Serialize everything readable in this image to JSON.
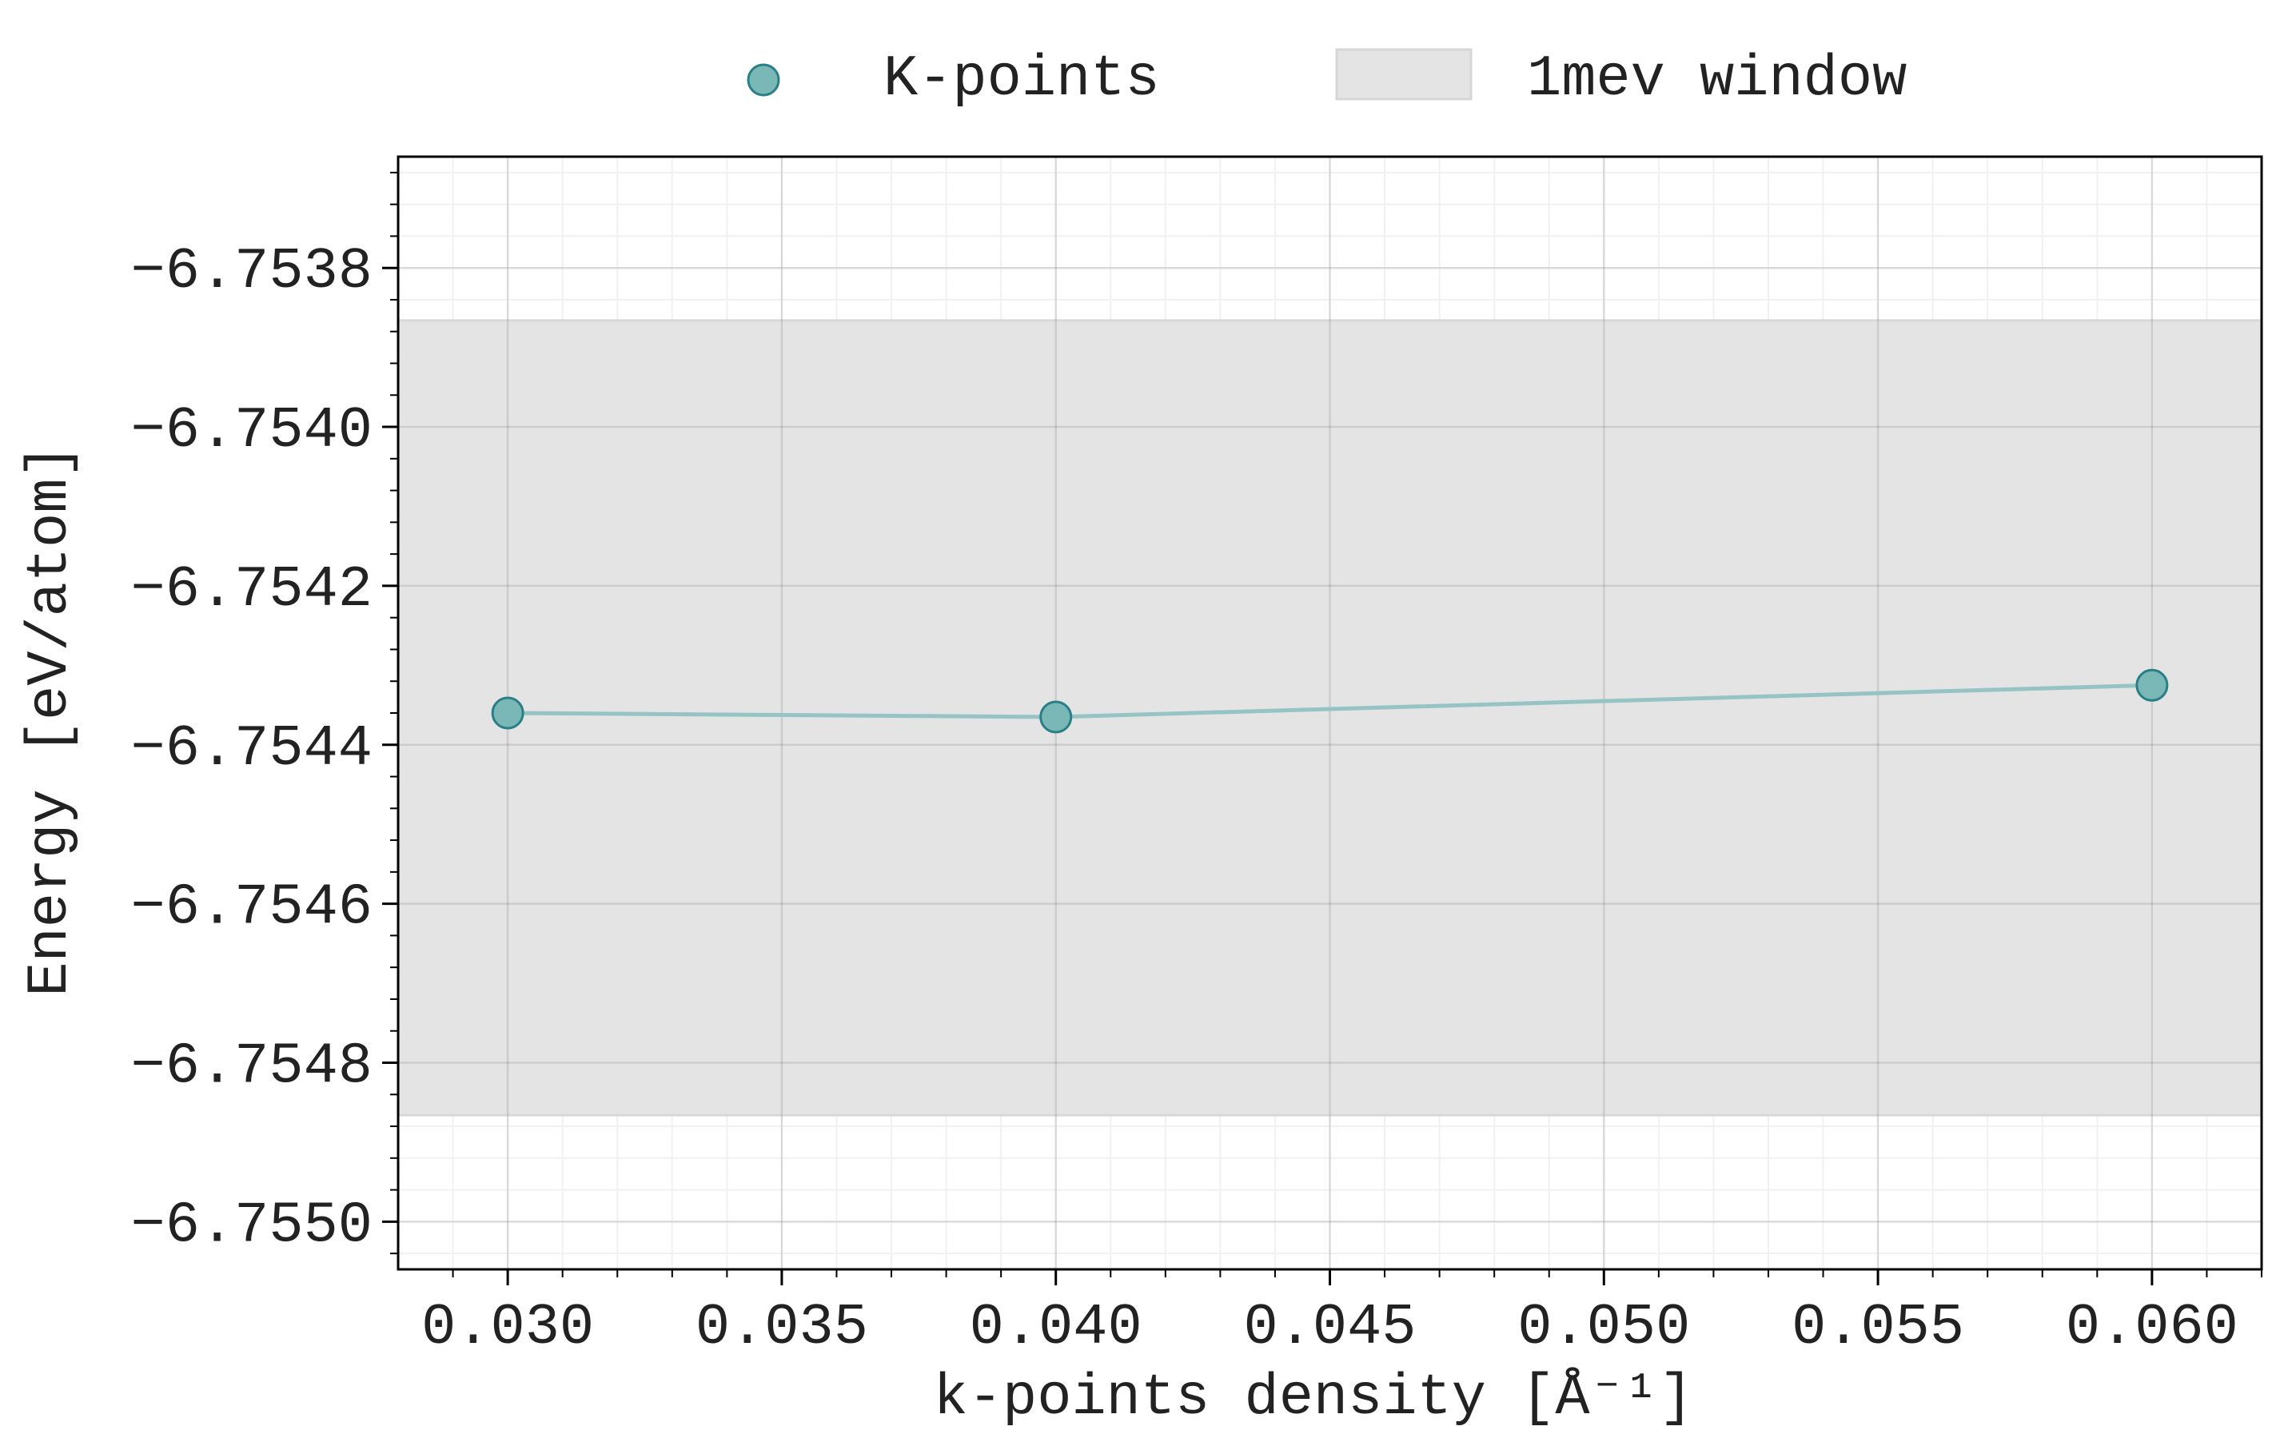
{
  "chart_data": {
    "type": "line",
    "xlabel": "k-points density [Å⁻¹]",
    "ylabel": "Energy [eV/atom]",
    "xlim": [
      0.028,
      0.062
    ],
    "ylim": [
      -6.75506,
      -6.75366
    ],
    "x_ticks": [
      0.03,
      0.035,
      0.04,
      0.045,
      0.05,
      0.055,
      0.06
    ],
    "x_tick_labels": [
      "0.030",
      "0.035",
      "0.040",
      "0.045",
      "0.050",
      "0.055",
      "0.060"
    ],
    "y_ticks": [
      -6.7538,
      -6.754,
      -6.7542,
      -6.7544,
      -6.7546,
      -6.7548,
      -6.755
    ],
    "y_tick_labels": [
      "−6.7538",
      "−6.7540",
      "−6.7542",
      "−6.7544",
      "−6.7546",
      "−6.7548",
      "−6.7550"
    ],
    "grid": true,
    "legend_position": "top-center",
    "series": [
      {
        "name": "K-points",
        "x": [
          0.03,
          0.04,
          0.06
        ],
        "y": [
          -6.75436,
          -6.754365,
          -6.754325
        ],
        "color": "#7ab8b8",
        "edge_color": "#2a7f86",
        "line_color": "#96c4c4"
      }
    ],
    "band": {
      "name": "1mev window",
      "y_min": -6.754866,
      "y_max": -6.753866,
      "color": "#e4e4e4"
    }
  }
}
